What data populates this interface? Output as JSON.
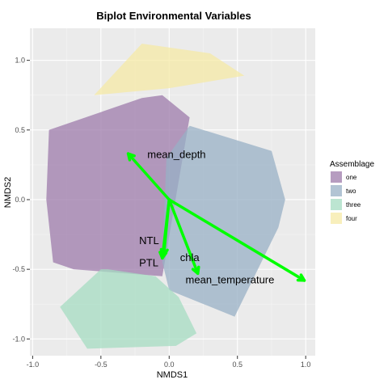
{
  "chart_data": {
    "type": "biplot",
    "title": "Biplot Environmental Variables",
    "xlabel": "NMDS1",
    "ylabel": "NMDS2",
    "xlim": [
      -1.02,
      1.07
    ],
    "ylim": [
      -1.12,
      1.23
    ],
    "xticks": [
      -1.0,
      -0.5,
      0.0,
      0.5,
      1.0
    ],
    "xtick_labels": [
      "-1.0",
      "-0.5",
      "0.0",
      "0.5",
      "1.0"
    ],
    "yticks": [
      -1.0,
      -0.5,
      0.0,
      0.5,
      1.0
    ],
    "ytick_labels": [
      "-1.0",
      "-0.5",
      "0.0",
      "0.5",
      "1.0"
    ],
    "grid": true,
    "legend": {
      "title": "Assemblage",
      "placement": "right"
    },
    "hulls": [
      {
        "name": "one",
        "color": "#9e7bab",
        "points": [
          [
            -0.88,
            0.5
          ],
          [
            -0.2,
            0.73
          ],
          [
            -0.05,
            0.75
          ],
          [
            0.15,
            0.59
          ],
          [
            -0.05,
            -0.55
          ],
          [
            -0.7,
            -0.5
          ],
          [
            -0.85,
            -0.45
          ],
          [
            -0.9,
            0.0
          ]
        ]
      },
      {
        "name": "two",
        "color": "#98b0c6",
        "points": [
          [
            -0.02,
            0.3
          ],
          [
            0.15,
            0.53
          ],
          [
            0.75,
            0.35
          ],
          [
            0.85,
            0.0
          ],
          [
            0.8,
            -0.2
          ],
          [
            0.48,
            -0.84
          ],
          [
            0.0,
            -0.65
          ],
          [
            -0.05,
            -0.45
          ]
        ]
      },
      {
        "name": "three",
        "color": "#a6dcc1",
        "points": [
          [
            -0.8,
            -0.77
          ],
          [
            -0.5,
            -0.5
          ],
          [
            -0.45,
            -0.5
          ],
          [
            -0.1,
            -0.55
          ],
          [
            0.07,
            -0.7
          ],
          [
            0.2,
            -0.96
          ],
          [
            0.05,
            -1.05
          ],
          [
            -0.6,
            -1.07
          ]
        ]
      },
      {
        "name": "four",
        "color": "#f5e9a6",
        "points": [
          [
            -0.55,
            0.75
          ],
          [
            -0.2,
            1.12
          ],
          [
            0.3,
            1.05
          ],
          [
            0.55,
            0.89
          ],
          [
            0.0,
            0.8
          ]
        ]
      }
    ],
    "vectors": [
      {
        "name": "mean_depth",
        "x": -0.3,
        "y": 0.33,
        "label_x": -0.16,
        "label_y": 0.32
      },
      {
        "name": "NTL",
        "x": -0.05,
        "y": -0.42,
        "label_x": -0.22,
        "label_y": -0.3
      },
      {
        "name": "PTL",
        "x": -0.04,
        "y": -0.4,
        "label_x": -0.22,
        "label_y": -0.46
      },
      {
        "name": "chla",
        "x": 0.21,
        "y": -0.53,
        "label_x": 0.08,
        "label_y": -0.42
      },
      {
        "name": "mean_temperature",
        "x": 0.99,
        "y": -0.58,
        "label_x": 0.12,
        "label_y": -0.58
      }
    ],
    "vector_color": "#00ff00"
  }
}
